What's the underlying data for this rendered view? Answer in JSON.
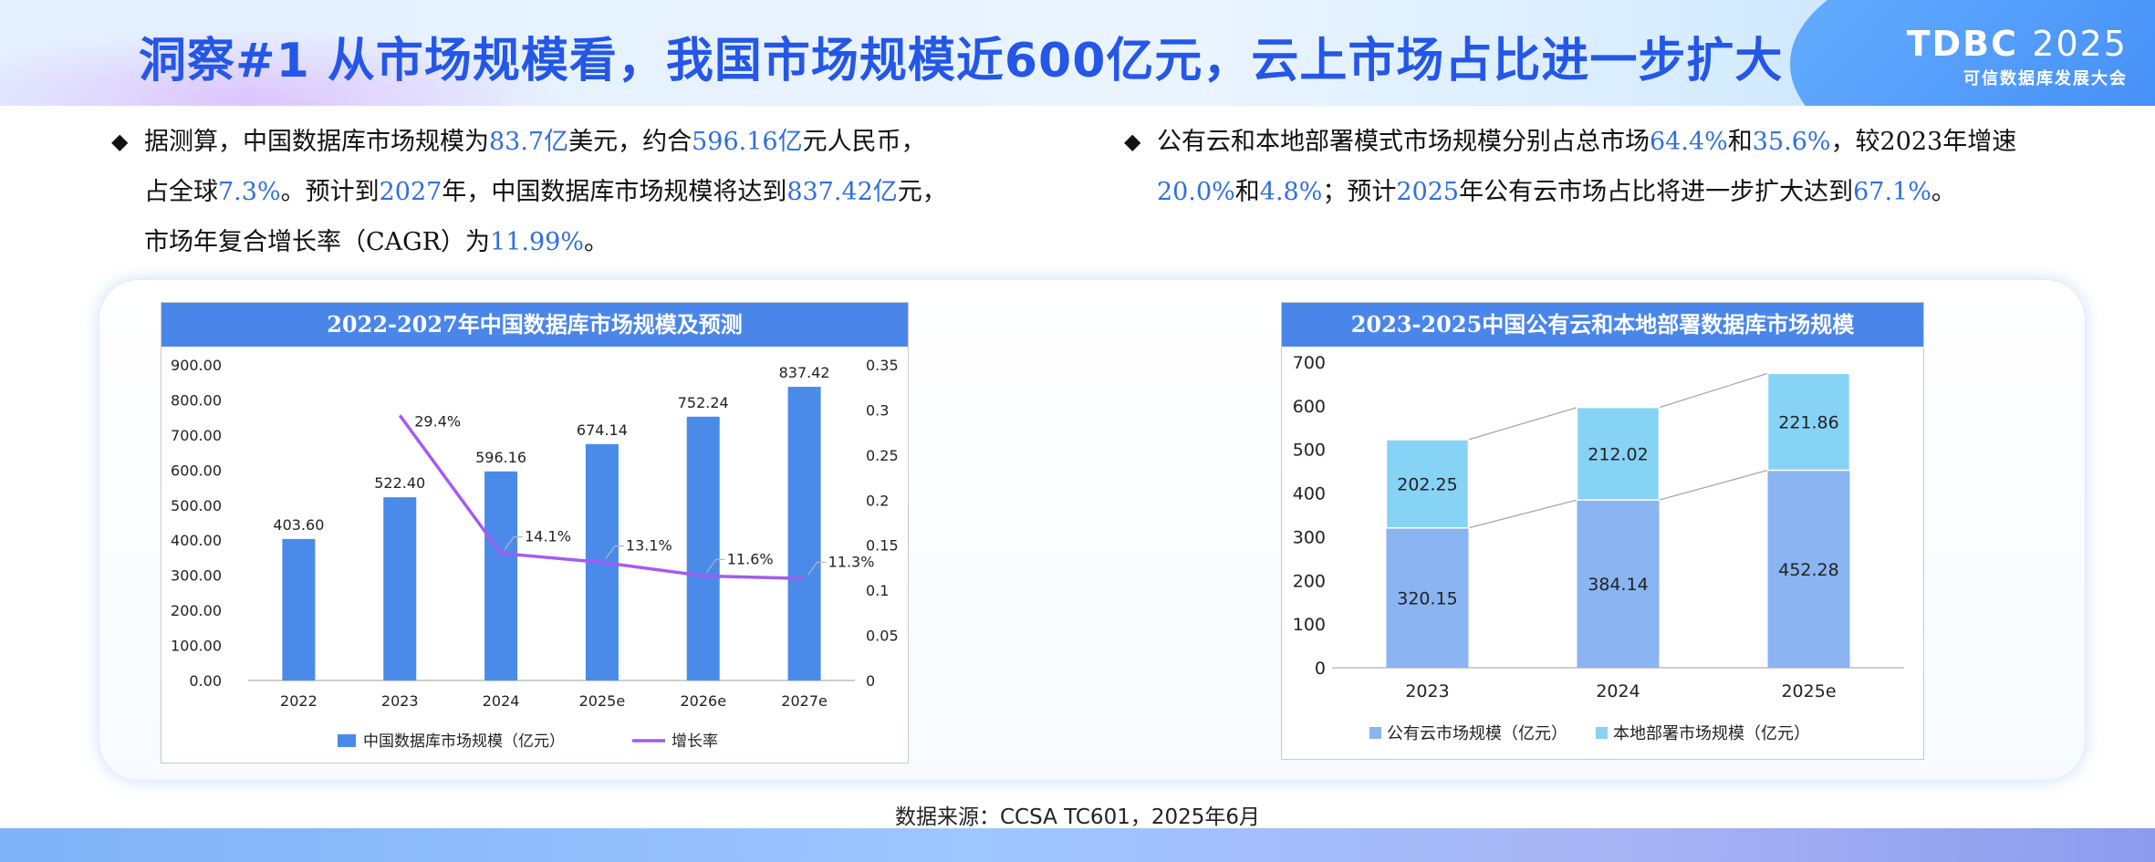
{
  "header": {
    "title": "洞察#1 从市场规模看，我国市场规模近600亿元，云上市场占比进一步扩大",
    "logo_main": "TDBC",
    "logo_year": "2025",
    "logo_sub": "可信数据库发展大会"
  },
  "bullets": {
    "left": {
      "marker": "◆",
      "lines": [
        [
          {
            "t": "据测算，中国数据库市场规模为"
          },
          {
            "t": "83.7亿",
            "hl": true
          },
          {
            "t": "美元，约合"
          },
          {
            "t": "596.16亿",
            "hl": true
          },
          {
            "t": "元人民币，"
          }
        ],
        [
          {
            "t": "占全球"
          },
          {
            "t": "7.3%",
            "hl": true
          },
          {
            "t": "。预计到"
          },
          {
            "t": "2027",
            "hl": true
          },
          {
            "t": "年，中国数据库市场规模将达到"
          },
          {
            "t": "837.42亿",
            "hl": true
          },
          {
            "t": "元，"
          }
        ],
        [
          {
            "t": "市场年复合增长率（CAGR）为"
          },
          {
            "t": "11.99%",
            "hl": true
          },
          {
            "t": "。"
          }
        ]
      ]
    },
    "right": {
      "marker": "◆",
      "lines": [
        [
          {
            "t": "公有云和本地部署模式市场规模分别占总市场"
          },
          {
            "t": "64.4%",
            "hl": true
          },
          {
            "t": "和"
          },
          {
            "t": "35.6%",
            "hl": true
          },
          {
            "t": "，较2023年增速"
          }
        ],
        [
          {
            "t": "20.0%",
            "hl": true
          },
          {
            "t": "和"
          },
          {
            "t": "4.8%",
            "hl": true
          },
          {
            "t": "；预计"
          },
          {
            "t": "2025",
            "hl": true
          },
          {
            "t": "年公有云市场占比将进一步扩大达到"
          },
          {
            "t": "67.1%",
            "hl": true
          },
          {
            "t": "。"
          }
        ]
      ]
    }
  },
  "chart_data": [
    {
      "type": "bar",
      "title": "2022-2027年中国数据库市场规模及预测",
      "categories": [
        "2022",
        "2023",
        "2024",
        "2025e",
        "2026e",
        "2027e"
      ],
      "series": [
        {
          "name": "中国数据库市场规模（亿元）",
          "kind": "bar",
          "axis": "left",
          "color": "#4a8be9",
          "values": [
            403.6,
            522.4,
            596.16,
            674.14,
            752.24,
            837.42
          ],
          "labels": [
            "403.60",
            "522.40",
            "596.16",
            "674.14",
            "752.24",
            "837.42"
          ]
        },
        {
          "name": "增长率",
          "kind": "line",
          "axis": "right",
          "color": "#a35cf0",
          "values": [
            null,
            0.294,
            0.141,
            0.131,
            0.116,
            0.113
          ],
          "labels": [
            "",
            "29.4%",
            "14.1%",
            "13.1%",
            "11.6%",
            "11.3%"
          ]
        }
      ],
      "ylim_left": [
        0,
        900
      ],
      "yticks_left": [
        "0.00",
        "100.00",
        "200.00",
        "300.00",
        "400.00",
        "500.00",
        "600.00",
        "700.00",
        "800.00",
        "900.00"
      ],
      "ylim_right": [
        0,
        0.35
      ],
      "yticks_right": [
        "0",
        "0.05",
        "0.1",
        "0.15",
        "0.2",
        "0.25",
        "0.3",
        "0.35"
      ],
      "legend": "bottom",
      "grid": false
    },
    {
      "type": "bar",
      "stacked": true,
      "title": "2023-2025中国公有云和本地部署数据库市场规模",
      "categories": [
        "2023",
        "2024",
        "2025e"
      ],
      "series": [
        {
          "name": "公有云市场规模（亿元）",
          "color": "#8ab4f2",
          "values": [
            320.15,
            384.14,
            452.28
          ],
          "labels": [
            "320.15",
            "384.14",
            "452.28"
          ]
        },
        {
          "name": "本地部署市场规模（亿元）",
          "color": "#86d3f5",
          "values": [
            202.25,
            212.02,
            221.86
          ],
          "labels": [
            "202.25",
            "212.02",
            "221.86"
          ]
        }
      ],
      "ylim": [
        0,
        700
      ],
      "yticks": [
        "0",
        "100",
        "200",
        "300",
        "400",
        "500",
        "600",
        "700"
      ],
      "legend": "bottom",
      "grid": false
    }
  ],
  "source": "数据来源：CCSA TC601，2025年6月"
}
